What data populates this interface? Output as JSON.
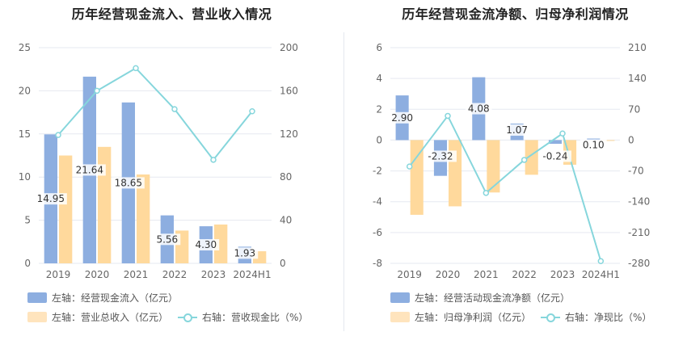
{
  "colors": {
    "bar_primary": "#8daee0",
    "bar_secondary": "#ffd99c",
    "line": "#86d6dc",
    "grid": "#e6e9f0",
    "axis_text": "#555555"
  },
  "left_chart": {
    "title": "历年经营现金流入、营业收入情况",
    "legend": {
      "bar1": "左轴：经营现金流入（亿元）",
      "bar2": "左轴：营业总收入（亿元）",
      "line": "右轴：营收现金比（%）"
    }
  },
  "right_chart": {
    "title": "历年经营现金流净额、归母净利润情况",
    "legend": {
      "bar1": "左轴：经营活动现金流净额（亿元）",
      "bar2": "左轴：归母净利润（亿元）",
      "line": "右轴：净现比（%）"
    }
  },
  "chart_data": [
    {
      "type": "bar",
      "title": "历年经营现金流入、营业收入情况",
      "categories": [
        "2019",
        "2020",
        "2021",
        "2022",
        "2023",
        "2024H1"
      ],
      "ylim_left": [
        0,
        25
      ],
      "yticks_left": [
        0,
        5,
        10,
        15,
        20,
        25
      ],
      "ylim_right": [
        0,
        200
      ],
      "yticks_right": [
        0,
        40,
        80,
        120,
        160,
        200
      ],
      "grid": true,
      "series": [
        {
          "name": "左轴：经营现金流入（亿元）",
          "axis": "left",
          "type": "bar",
          "values": [
            14.95,
            21.64,
            18.65,
            5.56,
            4.3,
            1.93
          ],
          "labels": [
            "14.95",
            "21.64",
            "18.65",
            "5.56",
            "4.30",
            "1.93"
          ]
        },
        {
          "name": "左轴：营业总收入（亿元）",
          "axis": "left",
          "type": "bar",
          "values": [
            12.5,
            13.5,
            10.3,
            3.8,
            4.5,
            1.4
          ]
        },
        {
          "name": "右轴：营收现金比（%）",
          "axis": "right",
          "type": "line",
          "values": [
            119,
            160,
            181,
            143,
            96,
            141
          ]
        }
      ]
    },
    {
      "type": "bar",
      "title": "历年经营现金流净额、归母净利润情况",
      "categories": [
        "2019",
        "2020",
        "2021",
        "2022",
        "2023",
        "2024H1"
      ],
      "ylim_left": [
        -8,
        6
      ],
      "yticks_left": [
        -8,
        -6,
        -4,
        -2,
        0,
        2,
        4,
        6
      ],
      "ylim_right": [
        -280,
        210
      ],
      "yticks_right": [
        -280,
        -210,
        -140,
        -70,
        0,
        70,
        140,
        210
      ],
      "grid": true,
      "series": [
        {
          "name": "左轴：经营活动现金流净额（亿元）",
          "axis": "left",
          "type": "bar",
          "values": [
            2.9,
            -2.32,
            4.08,
            1.07,
            -0.24,
            0.1
          ],
          "labels": [
            "2.90",
            "-2.32",
            "4.08",
            "1.07",
            "-0.24",
            "0.10"
          ]
        },
        {
          "name": "左轴：归母净利润（亿元）",
          "axis": "left",
          "type": "bar",
          "values": [
            -4.85,
            -4.3,
            -3.4,
            -2.25,
            -1.6,
            -0.05
          ]
        },
        {
          "name": "右轴：净现比（%）",
          "axis": "right",
          "type": "line",
          "values": [
            -60,
            55,
            -120,
            -45,
            15,
            -275
          ]
        }
      ]
    }
  ]
}
